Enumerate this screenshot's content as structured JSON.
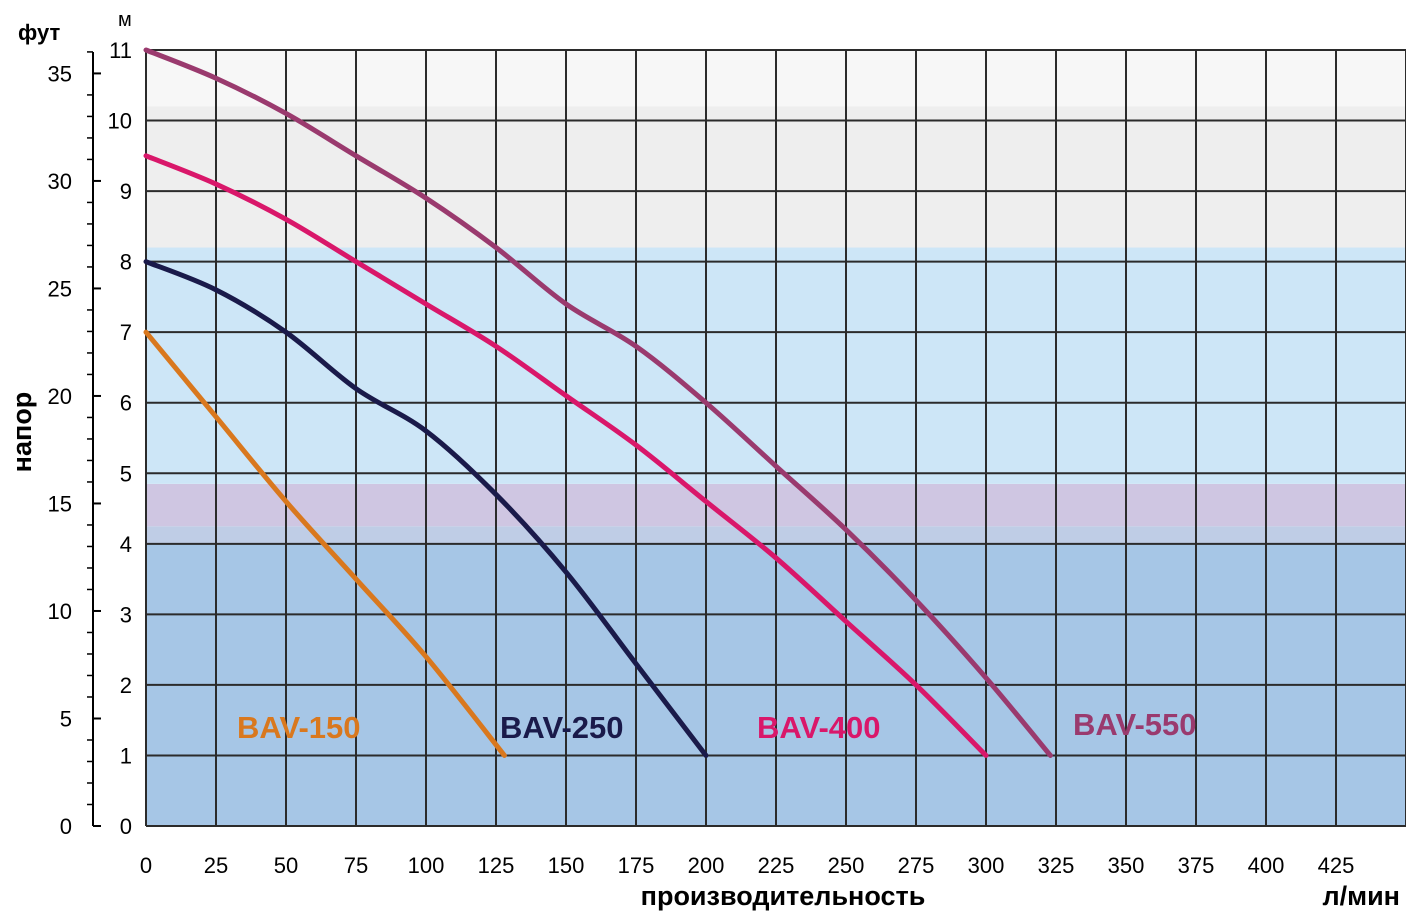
{
  "chart_data": {
    "type": "line",
    "xlabel": "производительность",
    "xunit": "л/мин",
    "ylabel": "напор",
    "yunit_left": "фут",
    "yunit_right": "м",
    "x_ticks": [
      0,
      25,
      50,
      75,
      100,
      125,
      150,
      175,
      200,
      225,
      250,
      275,
      300,
      325,
      350,
      375,
      400,
      425
    ],
    "y_ticks_m": [
      0,
      1,
      2,
      3,
      4,
      5,
      6,
      7,
      8,
      9,
      10,
      11
    ],
    "y_ticks_ft": [
      0,
      5,
      10,
      15,
      20,
      25,
      30,
      35
    ],
    "xlim": [
      0,
      450
    ],
    "ylim_m": [
      0,
      11
    ],
    "grid": true,
    "series": [
      {
        "name": "BAV-150",
        "color": "#d9781e",
        "x": [
          0,
          25,
          50,
          75,
          100,
          128
        ],
        "y": [
          7.0,
          5.8,
          4.6,
          3.5,
          2.4,
          1.0
        ]
      },
      {
        "name": "BAV-250",
        "color": "#1a1a4a",
        "x": [
          0,
          25,
          50,
          75,
          100,
          125,
          150,
          175,
          200
        ],
        "y": [
          8.0,
          7.6,
          7.0,
          6.2,
          5.6,
          4.7,
          3.6,
          2.3,
          1.0
        ]
      },
      {
        "name": "BAV-400",
        "color": "#d9176a",
        "x": [
          0,
          25,
          50,
          75,
          100,
          125,
          150,
          175,
          200,
          225,
          250,
          275,
          300
        ],
        "y": [
          9.5,
          9.1,
          8.6,
          8.0,
          7.4,
          6.8,
          6.1,
          5.4,
          4.6,
          3.8,
          2.9,
          2.0,
          1.0
        ]
      },
      {
        "name": "BAV-550",
        "color": "#9a3a6e",
        "x": [
          0,
          25,
          50,
          75,
          100,
          125,
          150,
          175,
          200,
          225,
          250,
          275,
          300,
          323
        ],
        "y": [
          11.0,
          10.6,
          10.1,
          9.5,
          8.9,
          8.2,
          7.4,
          6.8,
          6.0,
          5.1,
          4.2,
          3.2,
          2.1,
          1.0
        ]
      }
    ]
  }
}
